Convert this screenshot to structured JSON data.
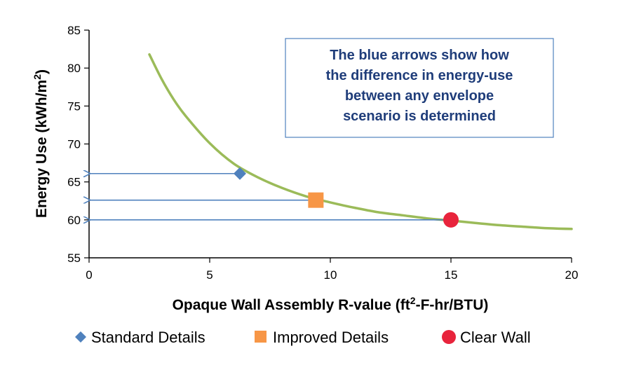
{
  "chart_data": {
    "type": "line",
    "title": "",
    "xlabel": "Opaque Wall Assembly R-value (ft²-F-hr/BTU)",
    "xlabel_main": "Opaque Wall Assembly R-value (ft",
    "xlabel_sup": "2",
    "xlabel_tail": "-F-hr/BTU)",
    "ylabel": "Energy Use (kWh/m²)",
    "ylabel_main": "Energy Use (kWh/m",
    "ylabel_sup": "2",
    "ylabel_tail": ")",
    "xlim": [
      0,
      20
    ],
    "ylim": [
      55,
      85
    ],
    "xticks": [
      0,
      5,
      10,
      15,
      20
    ],
    "yticks": [
      55,
      60,
      65,
      70,
      75,
      80,
      85
    ],
    "grid": false,
    "curve": {
      "color": "#9bbb59",
      "x": [
        2.5,
        3,
        3.5,
        4,
        5,
        6,
        7,
        8,
        9,
        10,
        11,
        12,
        13,
        14,
        15,
        16,
        17,
        18,
        19,
        20
      ],
      "y": [
        81.8,
        78.6,
        75.9,
        73.7,
        70.1,
        67.4,
        65.6,
        64.2,
        63.1,
        62.3,
        61.6,
        61.0,
        60.6,
        60.2,
        59.9,
        59.6,
        59.3,
        59.1,
        58.9,
        58.8
      ]
    },
    "points": [
      {
        "name": "Standard Details",
        "x": 6.25,
        "y": 66.1,
        "marker": "diamond",
        "color": "#4f81bd"
      },
      {
        "name": "Improved Details",
        "x": 9.4,
        "y": 62.6,
        "marker": "square",
        "color": "#f79646"
      },
      {
        "name": "Clear Wall",
        "x": 15,
        "y": 60.0,
        "marker": "circle",
        "color": "#e8243c"
      }
    ],
    "arrows": [
      {
        "from_x": 6.25,
        "to_x": 0,
        "y": 66.1
      },
      {
        "from_x": 9.4,
        "to_x": 0,
        "y": 62.6
      },
      {
        "from_x": 15,
        "to_x": 0,
        "y": 60.0
      }
    ],
    "arrow_color": "#4f81bd",
    "annotation": {
      "lines": [
        "The blue arrows show how",
        "the difference in energy-use",
        "between any envelope",
        "scenario is determined"
      ],
      "border_color": "#4f81bd",
      "text_color": "#1f3d7a"
    },
    "legend": {
      "placement": "bottom",
      "entries": [
        "Standard Details",
        "Improved Details",
        "Clear Wall"
      ]
    }
  }
}
